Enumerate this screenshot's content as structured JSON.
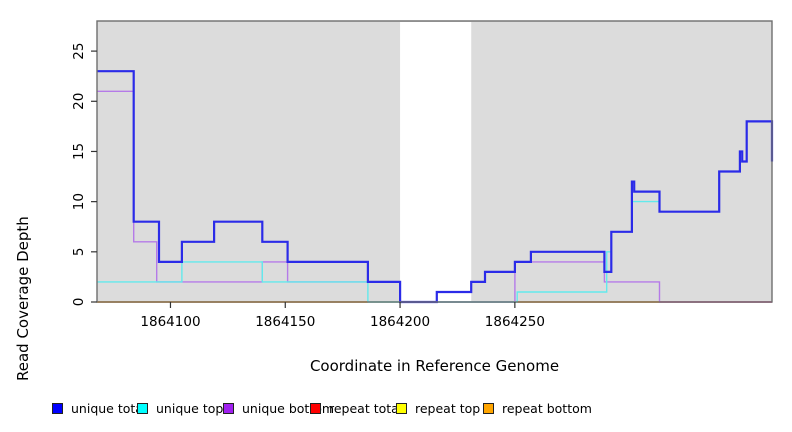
{
  "chart_data": {
    "type": "line",
    "subtype": "step",
    "title": "",
    "xlabel": "Coordinate in Reference Genome",
    "ylabel": "Read Coverage Depth",
    "xlim": [
      1864068,
      1864362
    ],
    "ylim": [
      0,
      28
    ],
    "xticks": [
      1864100,
      1864150,
      1864200,
      1864250
    ],
    "yticks": [
      0,
      5,
      10,
      15,
      20,
      25
    ],
    "grid": false,
    "plot_bg": "#DCDCDC",
    "frame_color": "#6e6e6e",
    "highlight_band": {
      "x0": 1864200,
      "x1": 1864231,
      "color": "#FFFFFF"
    },
    "legend_position": "bottom",
    "series": [
      {
        "name": "unique total",
        "legend_color": "#0000FF",
        "line_color": "#2B2BE8",
        "width": 2.2,
        "segments": [
          [
            [
              1864068,
              23
            ],
            [
              1864084,
              8
            ],
            [
              1864095,
              4
            ],
            [
              1864105,
              6
            ],
            [
              1864119,
              8
            ],
            [
              1864140,
              6
            ],
            [
              1864151,
              4
            ],
            [
              1864186,
              2
            ],
            [
              1864200,
              0
            ],
            [
              1864216,
              1
            ],
            [
              1864231,
              2
            ],
            [
              1864237,
              3
            ],
            [
              1864250,
              4
            ],
            [
              1864257,
              5
            ],
            [
              1864289,
              3
            ],
            [
              1864292,
              7
            ],
            [
              1864301,
              12
            ],
            [
              1864302,
              11
            ],
            [
              1864313,
              9
            ],
            [
              1864339,
              13
            ],
            [
              1864348,
              15
            ],
            [
              1864349,
              14
            ],
            [
              1864351,
              18
            ],
            [
              1864362,
              14
            ]
          ]
        ]
      },
      {
        "name": "unique top",
        "legend_color": "#00FFFF",
        "line_color": "#63E9EC",
        "width": 1.4,
        "segments": [
          [
            [
              1864068,
              2
            ],
            [
              1864105,
              4
            ],
            [
              1864140,
              2
            ],
            [
              1864186,
              0
            ],
            [
              1864251,
              1
            ],
            [
              1864290,
              5
            ],
            [
              1864292,
              7
            ],
            [
              1864301,
              10
            ],
            [
              1864313,
              9
            ],
            [
              1864339,
              13
            ],
            [
              1864348,
              14
            ],
            [
              1864351,
              18
            ],
            [
              1864362,
              14
            ]
          ]
        ]
      },
      {
        "name": "unique bottom",
        "legend_color": "#A020F0",
        "line_color": "#B57BE8",
        "width": 1.4,
        "segments": [
          [
            [
              1864068,
              21
            ],
            [
              1864084,
              6
            ],
            [
              1864094,
              2
            ],
            [
              1864140,
              4
            ],
            [
              1864151,
              2
            ],
            [
              1864200,
              0
            ],
            [
              1864250,
              4
            ],
            [
              1864289,
              2
            ],
            [
              1864313,
              0
            ],
            [
              1864362,
              0
            ]
          ]
        ]
      },
      {
        "name": "repeat total",
        "legend_color": "#FF0000",
        "line_color": "#D23C64",
        "width": 1.6,
        "segments": [
          [
            [
              1864313,
              0
            ],
            [
              1864362,
              0
            ]
          ]
        ]
      },
      {
        "name": "repeat top",
        "legend_color": "#FFFF00",
        "line_color": "#8FD6A0",
        "width": 1.6,
        "segments": [
          [
            [
              1864186,
              0
            ],
            [
              1864251,
              0
            ]
          ]
        ]
      },
      {
        "name": "repeat bottom",
        "legend_color": "#FFA500",
        "line_color": "#FF9912",
        "width": 1.8,
        "segments": [
          [
            [
              1864068,
              0
            ],
            [
              1864186,
              0
            ]
          ],
          [
            [
              1864251,
              0
            ],
            [
              1864313,
              0
            ]
          ]
        ]
      }
    ]
  },
  "legend": {
    "items": [
      {
        "label": "unique total"
      },
      {
        "label": "unique top"
      },
      {
        "label": "unique bottom"
      },
      {
        "label": "repeat total"
      },
      {
        "label": "repeat top"
      },
      {
        "label": "repeat bottom"
      }
    ]
  }
}
